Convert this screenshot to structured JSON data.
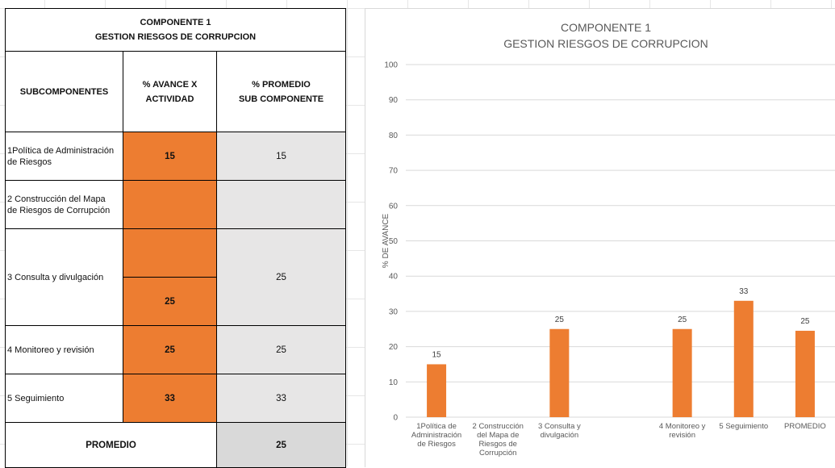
{
  "table": {
    "title_line1": "COMPONENTE 1",
    "title_line2": "GESTION RIESGOS DE CORRUPCION",
    "headers": {
      "subcomponentes": "SUBCOMPONENTES",
      "avance_line1": "% AVANCE X",
      "avance_line2": "ACTIVIDAD",
      "promedio_line1": "% PROMEDIO",
      "promedio_line2": "SUB COMPONENTE"
    },
    "rows": [
      {
        "line1": "1Política de Administración",
        "line2": "de Riesgos",
        "avance": "15",
        "promedio": "15"
      },
      {
        "line1": "2 Construcción del Mapa",
        "line2": "de Riesgos de Corrupción",
        "avance": "",
        "promedio": ""
      },
      {
        "line1": "3 Consulta y divulgación",
        "line2": "",
        "avance_a": "",
        "avance_b": "25",
        "promedio": "25"
      },
      {
        "line1": "4 Monitoreo y revisión",
        "line2": "",
        "avance": "25",
        "promedio": "25"
      },
      {
        "line1": "5 Seguimiento",
        "line2": "",
        "avance": "33",
        "promedio": "33"
      }
    ],
    "footer_label": "PROMEDIO",
    "footer_value": "25"
  },
  "colors": {
    "accent": "#ed7d31",
    "cell_grey": "#e7e6e6",
    "grid": "#d9d9d9",
    "text_muted": "#595959"
  },
  "chart_data": {
    "type": "bar",
    "title_line1": "COMPONENTE 1",
    "title_line2": "GESTION RIESGOS DE CORRUPCION",
    "ylabel": "% DE AVANCE",
    "xlabel": "",
    "ylim": [
      0,
      100
    ],
    "yticks": [
      0,
      10,
      20,
      30,
      40,
      50,
      60,
      70,
      80,
      90,
      100
    ],
    "grid": true,
    "categories": [
      [
        "1Política de",
        "Administración",
        "de Riesgos"
      ],
      [
        "2 Construcción",
        "del Mapa de",
        "Riesgos de",
        "Corrupción"
      ],
      [
        "3 Consulta y",
        "divulgación"
      ],
      [],
      [
        "4 Monitoreo y",
        "revisión"
      ],
      [
        "5 Seguimiento"
      ],
      [
        "PROMEDIO"
      ]
    ],
    "values": [
      15,
      null,
      25,
      null,
      25,
      33,
      24.5
    ],
    "labels": [
      "15",
      "",
      "25",
      "",
      "25",
      "33",
      "25"
    ],
    "bar_color": "#ed7d31"
  }
}
